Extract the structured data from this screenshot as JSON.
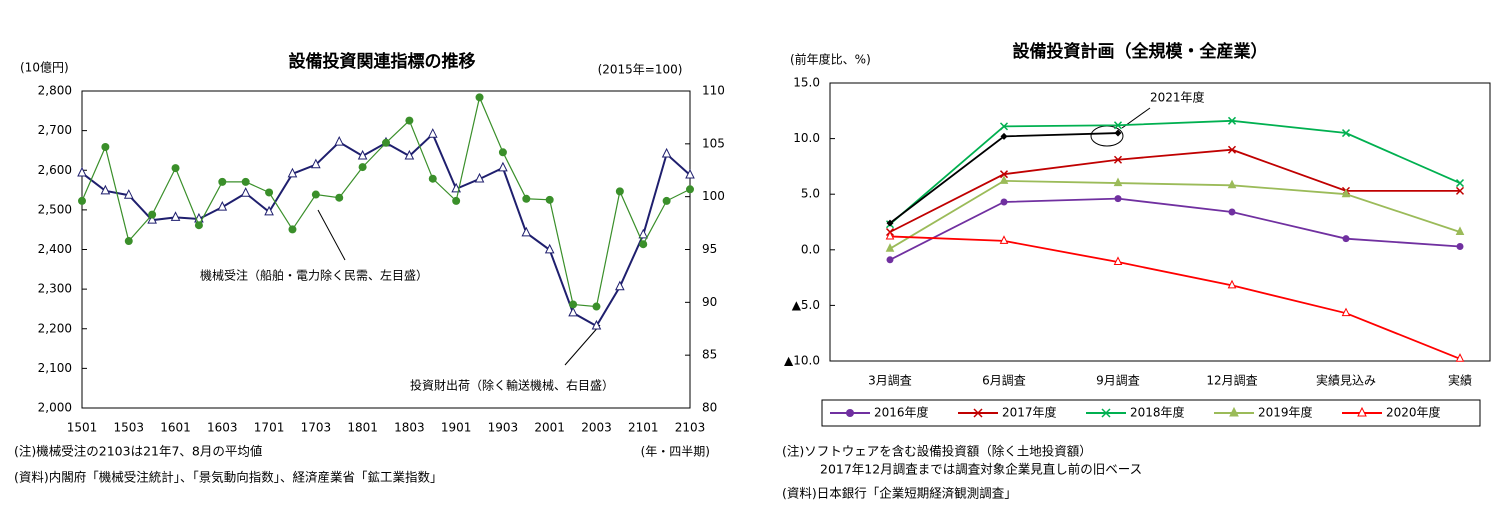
{
  "chart_data": [
    {
      "type": "line",
      "title": "設備投資関連指標の推移",
      "y_unit": "(10億円)",
      "y2_unit": "(2015年=100)",
      "x_unit": "(年・四半期)",
      "notes": [
        "(注)機械受注の2103は21年7、8月の平均値",
        "(資料)内閣府「機械受注統計」、「景気動向指数」、経済産業省「鉱工業指数」"
      ],
      "categories": [
        "1501",
        null,
        "1503",
        null,
        "1601",
        null,
        "1603",
        null,
        "1701",
        null,
        "1703",
        null,
        "1801",
        null,
        "1803",
        null,
        "1901",
        null,
        "1903",
        null,
        "2001",
        null,
        "2003",
        null,
        "2101",
        null,
        "2103"
      ],
      "ylim": [
        2000,
        2800
      ],
      "yticks": [
        {
          "value": 2000,
          "label": "2,000"
        },
        {
          "value": 2100,
          "label": "2,100"
        },
        {
          "value": 2200,
          "label": "2,200"
        },
        {
          "value": 2300,
          "label": "2,300"
        },
        {
          "value": 2400,
          "label": "2,400"
        },
        {
          "value": 2500,
          "label": "2,500"
        },
        {
          "value": 2600,
          "label": "2,600"
        },
        {
          "value": 2700,
          "label": "2,700"
        },
        {
          "value": 2800,
          "label": "2,800"
        }
      ],
      "y2lim": [
        80,
        110
      ],
      "y2ticks": [
        80,
        85,
        90,
        95,
        100,
        105,
        110
      ],
      "series": [
        {
          "name": "機械受注（船舶・電力除く民需、左目盛）",
          "color": "#1f1f6e",
          "marker": "triangle-open",
          "values": [
            2593,
            2548,
            2537,
            2474,
            2481,
            2477,
            2507,
            2542,
            2495,
            2591,
            2614,
            2671,
            2636,
            2669,
            2636,
            2691,
            2553,
            2578,
            2606,
            2442,
            2399,
            2240,
            2207,
            2306,
            2437,
            2641,
            2588
          ]
        },
        {
          "name": "投資財出荷（除く輸送機械、右目盛）",
          "color": "#3a8f2a",
          "marker": "circle",
          "axis": "y2",
          "values": [
            99.6,
            104.7,
            95.8,
            98.3,
            102.7,
            97.3,
            101.4,
            101.4,
            100.4,
            96.9,
            100.2,
            99.9,
            102.8,
            105.1,
            107.2,
            101.7,
            99.6,
            109.4,
            104.2,
            99.8,
            99.7,
            89.8,
            89.6,
            100.5,
            95.5,
            99.6,
            100.7
          ]
        }
      ]
    },
    {
      "type": "line",
      "title": "設備投資計画（全規模・全産業）",
      "y_unit": "(前年度比、%)",
      "notes": [
        "(注)ソフトウェアを含む設備投資額（除く土地投資額）",
        "2017年12月調査までは調査対象企業見直し前の旧ベース",
        "(資料)日本銀行「企業短期経済観測調査」"
      ],
      "categories": [
        "3月調査",
        "6月調査",
        "9月調査",
        "12月調査",
        "実績見込み",
        "実績"
      ],
      "ylim": [
        -10,
        15
      ],
      "yticks": [
        {
          "value": -10,
          "label": "▲10.0"
        },
        {
          "value": -5,
          "label": "▲5.0"
        },
        {
          "value": 0,
          "label": "0.0"
        },
        {
          "value": 5,
          "label": "5.0"
        },
        {
          "value": 10,
          "label": "10.0"
        },
        {
          "value": 15,
          "label": "15.0"
        }
      ],
      "series": [
        {
          "name": "2016年度",
          "color": "#7030a0",
          "marker": "circle",
          "values": [
            -0.9,
            4.3,
            4.6,
            3.4,
            1.0,
            0.3
          ]
        },
        {
          "name": "2017年度",
          "color": "#c00000",
          "marker": "x",
          "values": [
            1.6,
            6.8,
            8.1,
            9.0,
            5.3,
            5.3
          ]
        },
        {
          "name": "2018年度",
          "color": "#00b050",
          "marker": "x",
          "values": [
            2.3,
            11.1,
            11.2,
            11.6,
            10.5,
            6.0
          ]
        },
        {
          "name": "2019年度",
          "color": "#9bbb59",
          "marker": "triangle",
          "values": [
            0.1,
            6.2,
            6.0,
            5.8,
            5.0,
            1.6
          ]
        },
        {
          "name": "2020年度",
          "color": "#ff0000",
          "marker": "triangle-open",
          "values": [
            1.2,
            0.8,
            -1.1,
            -3.2,
            -5.7,
            -9.8
          ]
        },
        {
          "name": "2021年度",
          "color": "#000000",
          "marker": "diamond",
          "in_legend": false,
          "values": [
            2.4,
            10.2,
            10.5,
            null,
            null,
            null
          ]
        }
      ]
    }
  ]
}
